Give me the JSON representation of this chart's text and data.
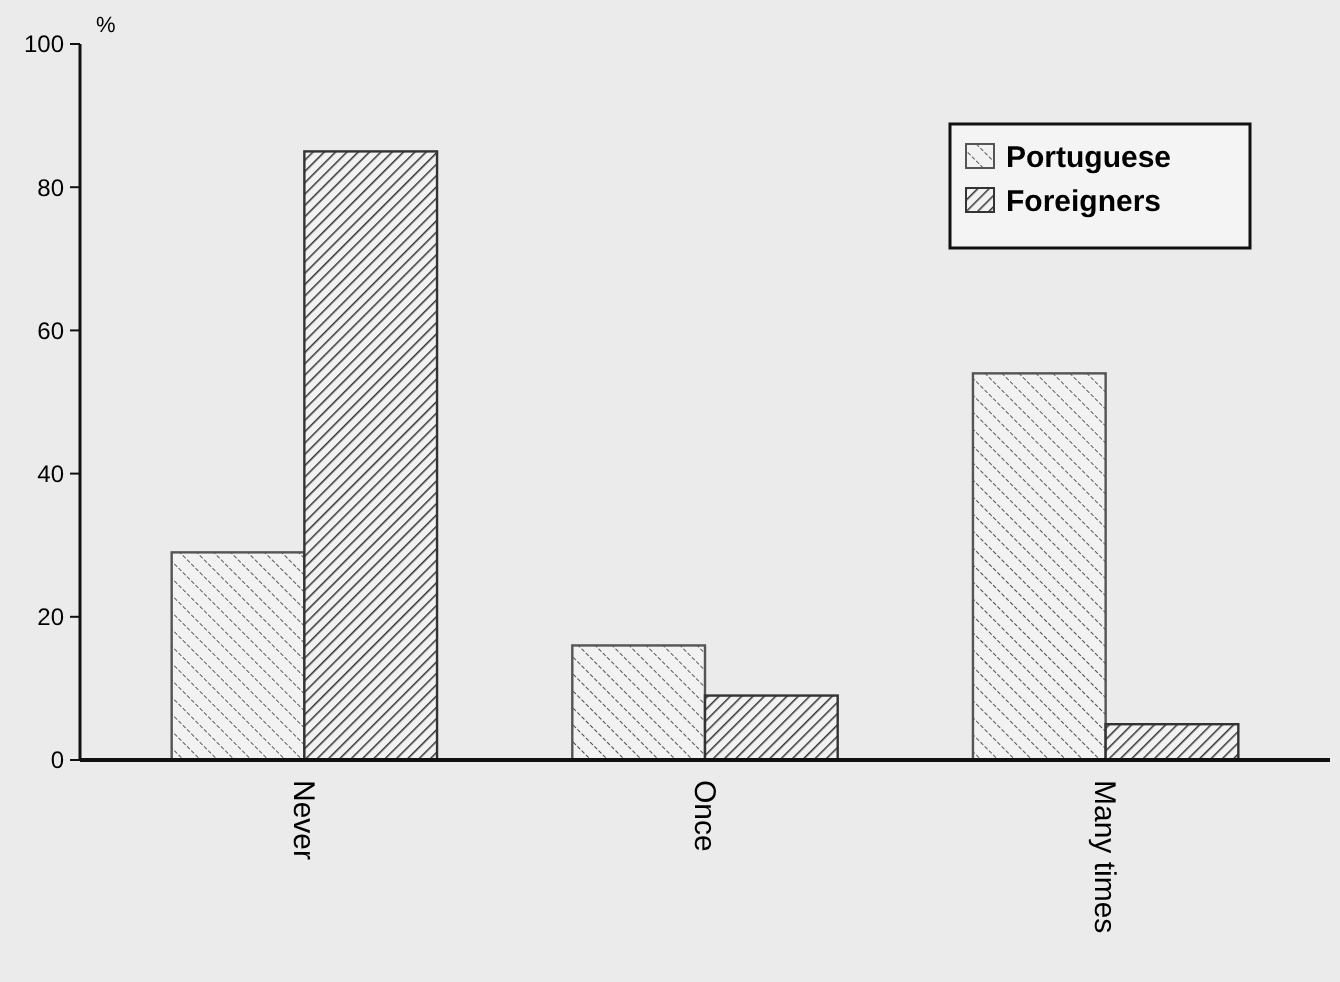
{
  "chart_data": {
    "type": "bar",
    "categories": [
      "Never",
      "Once",
      "Many times"
    ],
    "ylabel": "%",
    "ylim": [
      0,
      100
    ],
    "yticks": [
      0,
      20,
      40,
      60,
      80,
      100
    ],
    "grid": false,
    "legend": "top right",
    "series": [
      {
        "name": "Portuguese",
        "color": "#555555",
        "values": [
          29,
          16,
          54
        ]
      },
      {
        "name": "Foreigners",
        "color": "#333333",
        "values": [
          85,
          9,
          5
        ]
      }
    ]
  }
}
